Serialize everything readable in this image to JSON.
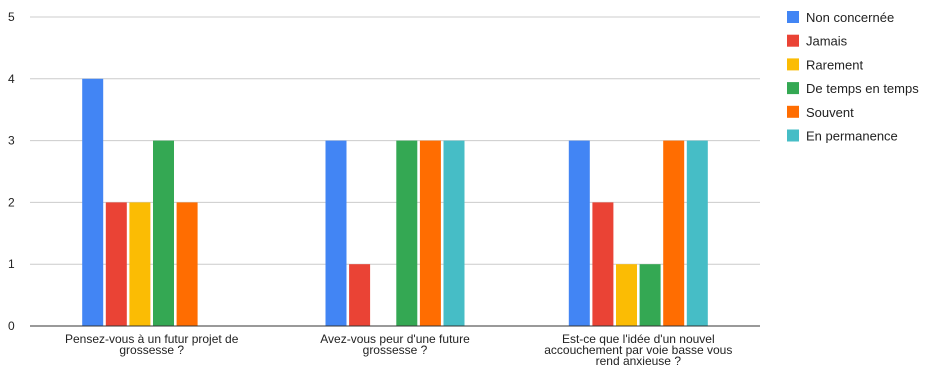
{
  "chart_data": {
    "type": "bar",
    "categories": [
      [
        "Pensez-vous à un futur projet de",
        "grossesse ?"
      ],
      [
        "Avez-vous peur d'une future",
        "grossesse ?"
      ],
      [
        "Est-ce que l'idée d'un nouvel",
        "accouchement par voie basse vous",
        "rend anxieuse ?"
      ]
    ],
    "series": [
      {
        "name": "Non concernée",
        "color": "#4285F4",
        "values": [
          4,
          3,
          3
        ]
      },
      {
        "name": "Jamais",
        "color": "#EA4335",
        "values": [
          2,
          1,
          2
        ]
      },
      {
        "name": "Rarement",
        "color": "#FBBC04",
        "values": [
          2,
          0,
          1
        ]
      },
      {
        "name": "De temps en temps",
        "color": "#34A853",
        "values": [
          3,
          3,
          1
        ]
      },
      {
        "name": "Souvent",
        "color": "#FF6D01",
        "values": [
          2,
          3,
          3
        ]
      },
      {
        "name": "En permanence",
        "color": "#46BDC6",
        "values": [
          0,
          3,
          3
        ]
      }
    ],
    "ylim": [
      0,
      5
    ],
    "yticks": [
      0,
      1,
      2,
      3,
      4,
      5
    ],
    "grid": true,
    "legend": "right"
  }
}
